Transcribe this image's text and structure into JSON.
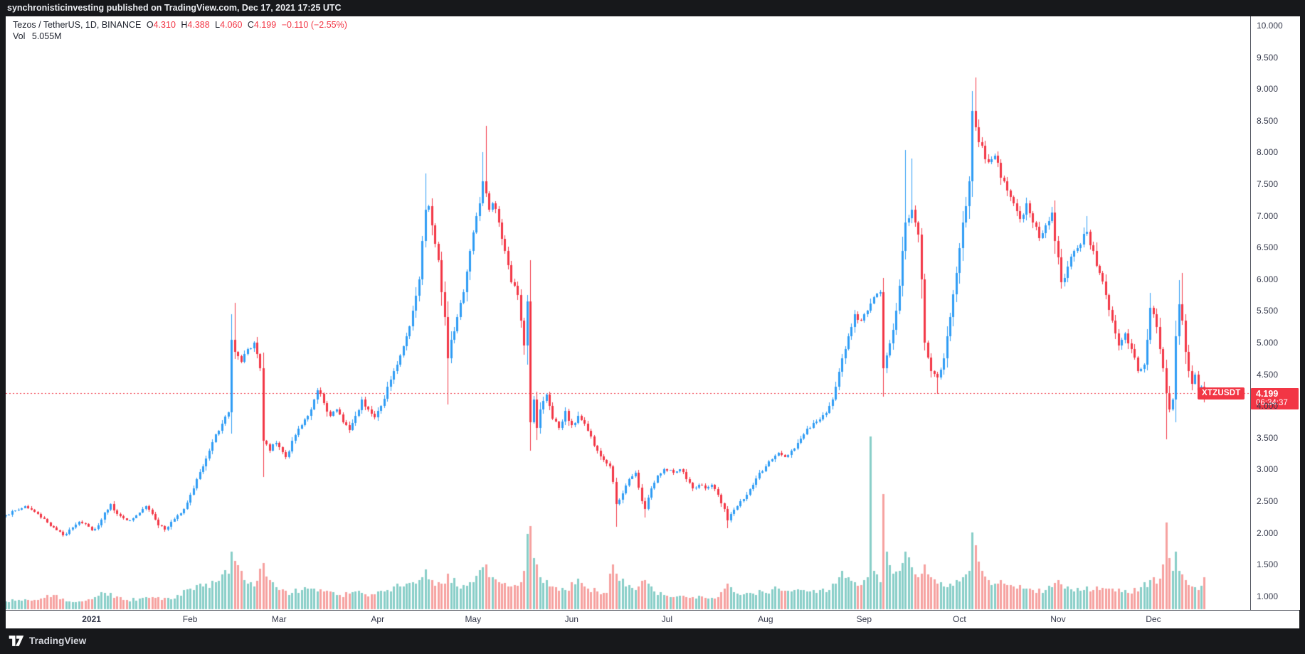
{
  "top_bar": {
    "text": "synchronisticinvesting published on TradingView.com, Dec 17, 2021 17:25 UTC"
  },
  "legend": {
    "title": "Tezos / TetherUS, 1D, BINANCE",
    "ohlc": [
      {
        "label": "O",
        "value": "4.310"
      },
      {
        "label": "H",
        "value": "4.388"
      },
      {
        "label": "L",
        "value": "4.060"
      },
      {
        "label": "C",
        "value": "4.199"
      }
    ],
    "change": "−0.110 (−2.55%)",
    "vol_label": "Vol",
    "vol_value": "5.055M"
  },
  "last_price": {
    "symbol": "XTZUSDT",
    "price": "4.199",
    "countdown": "06:34:37",
    "value": 4.199
  },
  "footer": {
    "brand": "TradingView"
  },
  "colors": {
    "up": "#2e9cf4",
    "down": "#f23645",
    "vol_up": "rgba(38,166,154,0.55)",
    "vol_down": "rgba(239,83,80,0.55)",
    "price_line": "#f23645",
    "bg_dark": "#17181b",
    "axis_text": "#34384a"
  },
  "price_axis": {
    "min": 1.0,
    "max": 10.0,
    "step": 0.5,
    "ticks": [
      {
        "label": "10.000",
        "value": 10.0
      },
      {
        "label": "9.500",
        "value": 9.5
      },
      {
        "label": "9.000",
        "value": 9.0
      },
      {
        "label": "8.500",
        "value": 8.5
      },
      {
        "label": "8.000",
        "value": 8.0
      },
      {
        "label": "7.500",
        "value": 7.5
      },
      {
        "label": "7.000",
        "value": 7.0
      },
      {
        "label": "6.500",
        "value": 6.5
      },
      {
        "label": "6.000",
        "value": 6.0
      },
      {
        "label": "5.500",
        "value": 5.5
      },
      {
        "label": "5.000",
        "value": 5.0
      },
      {
        "label": "4.500",
        "value": 4.5
      },
      {
        "label": "4.000",
        "value": 4.0
      },
      {
        "label": "3.500",
        "value": 3.5
      },
      {
        "label": "3.000",
        "value": 3.0
      },
      {
        "label": "2.500",
        "value": 2.5
      },
      {
        "label": "2.000",
        "value": 2.0
      },
      {
        "label": "1.500",
        "value": 1.5
      },
      {
        "label": "1.000",
        "value": 1.0
      }
    ]
  },
  "time_axis": {
    "labels": [
      {
        "text": "2021",
        "day": 27,
        "year": true
      },
      {
        "text": "Feb",
        "day": 58
      },
      {
        "text": "Mar",
        "day": 86
      },
      {
        "text": "Apr",
        "day": 117
      },
      {
        "text": "May",
        "day": 147
      },
      {
        "text": "Jun",
        "day": 178
      },
      {
        "text": "Jul",
        "day": 208
      },
      {
        "text": "Aug",
        "day": 239
      },
      {
        "text": "Sep",
        "day": 270
      },
      {
        "text": "Oct",
        "day": 300
      },
      {
        "text": "Nov",
        "day": 331
      },
      {
        "text": "Dec",
        "day": 361
      }
    ]
  },
  "chart_data": {
    "type": "candlestick",
    "symbol": "XTZUSDT",
    "exchange": "BINANCE",
    "interval": "1D",
    "date_range": "Dec 2020 - Dec 17 2021",
    "ylim": [
      1.0,
      10.0
    ],
    "grid": false,
    "days_total": 378,
    "price_line": 4.199,
    "last_candle": {
      "open": 4.31,
      "high": 4.388,
      "low": 4.06,
      "close": 4.199,
      "volume_m": 5.055
    },
    "close_anchors": [
      [
        0,
        2.28
      ],
      [
        3,
        2.35
      ],
      [
        6,
        2.42
      ],
      [
        9,
        2.33
      ],
      [
        12,
        2.22
      ],
      [
        15,
        2.08
      ],
      [
        18,
        1.96
      ],
      [
        20,
        2.05
      ],
      [
        23,
        2.18
      ],
      [
        26,
        2.1
      ],
      [
        27,
        2.04
      ],
      [
        29,
        2.12
      ],
      [
        31,
        2.32
      ],
      [
        33,
        2.45
      ],
      [
        35,
        2.3
      ],
      [
        38,
        2.2
      ],
      [
        41,
        2.28
      ],
      [
        44,
        2.42
      ],
      [
        46,
        2.3
      ],
      [
        48,
        2.12
      ],
      [
        50,
        2.05
      ],
      [
        52,
        2.18
      ],
      [
        54,
        2.28
      ],
      [
        56,
        2.38
      ],
      [
        58,
        2.6
      ],
      [
        60,
        2.85
      ],
      [
        62,
        3.05
      ],
      [
        64,
        3.3
      ],
      [
        66,
        3.55
      ],
      [
        68,
        3.72
      ],
      [
        70,
        3.9
      ],
      [
        71,
        5.05
      ],
      [
        72,
        4.85
      ],
      [
        74,
        4.7
      ],
      [
        76,
        4.9
      ],
      [
        78,
        5.0
      ],
      [
        80,
        4.6
      ],
      [
        81,
        3.45
      ],
      [
        83,
        3.3
      ],
      [
        85,
        3.42
      ],
      [
        86,
        3.35
      ],
      [
        88,
        3.2
      ],
      [
        90,
        3.45
      ],
      [
        93,
        3.7
      ],
      [
        96,
        3.95
      ],
      [
        98,
        4.25
      ],
      [
        100,
        4.05
      ],
      [
        102,
        3.85
      ],
      [
        104,
        3.95
      ],
      [
        106,
        3.75
      ],
      [
        108,
        3.62
      ],
      [
        110,
        3.85
      ],
      [
        112,
        4.1
      ],
      [
        114,
        3.95
      ],
      [
        116,
        3.82
      ],
      [
        118,
        4.0
      ],
      [
        120,
        4.3
      ],
      [
        122,
        4.55
      ],
      [
        124,
        4.8
      ],
      [
        126,
        5.1
      ],
      [
        128,
        5.5
      ],
      [
        130,
        6.0
      ],
      [
        132,
        7.1
      ],
      [
        133,
        7.15
      ],
      [
        134,
        6.85
      ],
      [
        136,
        6.3
      ],
      [
        137,
        5.8
      ],
      [
        138,
        5.4
      ],
      [
        139,
        4.75
      ],
      [
        140,
        5.05
      ],
      [
        142,
        5.4
      ],
      [
        144,
        5.8
      ],
      [
        146,
        6.45
      ],
      [
        148,
        7.0
      ],
      [
        150,
        7.55
      ],
      [
        151,
        7.35
      ],
      [
        152,
        7.1
      ],
      [
        153,
        7.2
      ],
      [
        155,
        6.9
      ],
      [
        157,
        6.45
      ],
      [
        159,
        5.95
      ],
      [
        161,
        5.75
      ],
      [
        162,
        5.35
      ],
      [
        163,
        4.95
      ],
      [
        164,
        5.65
      ],
      [
        165,
        3.75
      ],
      [
        166,
        4.1
      ],
      [
        167,
        3.65
      ],
      [
        168,
        3.95
      ],
      [
        170,
        4.18
      ],
      [
        172,
        3.8
      ],
      [
        174,
        3.65
      ],
      [
        176,
        3.92
      ],
      [
        178,
        3.7
      ],
      [
        180,
        3.85
      ],
      [
        182,
        3.72
      ],
      [
        184,
        3.52
      ],
      [
        186,
        3.3
      ],
      [
        188,
        3.15
      ],
      [
        190,
        3.05
      ],
      [
        191,
        2.8
      ],
      [
        192,
        2.45
      ],
      [
        194,
        2.62
      ],
      [
        196,
        2.85
      ],
      [
        198,
        2.95
      ],
      [
        200,
        2.5
      ],
      [
        201,
        2.38
      ],
      [
        203,
        2.7
      ],
      [
        205,
        2.9
      ],
      [
        207,
        3.0
      ],
      [
        210,
        2.95
      ],
      [
        212,
        3.0
      ],
      [
        214,
        2.85
      ],
      [
        216,
        2.7
      ],
      [
        218,
        2.76
      ],
      [
        220,
        2.7
      ],
      [
        222,
        2.76
      ],
      [
        224,
        2.6
      ],
      [
        226,
        2.38
      ],
      [
        227,
        2.2
      ],
      [
        229,
        2.36
      ],
      [
        231,
        2.5
      ],
      [
        233,
        2.6
      ],
      [
        235,
        2.76
      ],
      [
        237,
        2.95
      ],
      [
        239,
        3.05
      ],
      [
        241,
        3.16
      ],
      [
        243,
        3.26
      ],
      [
        245,
        3.2
      ],
      [
        247,
        3.3
      ],
      [
        249,
        3.42
      ],
      [
        251,
        3.55
      ],
      [
        253,
        3.66
      ],
      [
        255,
        3.76
      ],
      [
        257,
        3.86
      ],
      [
        259,
        4.0
      ],
      [
        261,
        4.3
      ],
      [
        263,
        4.75
      ],
      [
        265,
        5.1
      ],
      [
        267,
        5.45
      ],
      [
        269,
        5.35
      ],
      [
        271,
        5.5
      ],
      [
        272,
        5.62
      ],
      [
        273,
        5.72
      ],
      [
        275,
        5.8
      ],
      [
        276,
        4.6
      ],
      [
        277,
        4.8
      ],
      [
        279,
        5.2
      ],
      [
        281,
        5.9
      ],
      [
        283,
        6.9
      ],
      [
        285,
        7.1
      ],
      [
        287,
        6.7
      ],
      [
        288,
        6.0
      ],
      [
        289,
        5.0
      ],
      [
        291,
        4.55
      ],
      [
        293,
        4.45
      ],
      [
        295,
        4.75
      ],
      [
        297,
        5.4
      ],
      [
        299,
        6.1
      ],
      [
        301,
        6.9
      ],
      [
        303,
        7.55
      ],
      [
        304,
        8.65
      ],
      [
        305,
        8.4
      ],
      [
        307,
        8.1
      ],
      [
        309,
        7.85
      ],
      [
        311,
        7.95
      ],
      [
        313,
        7.6
      ],
      [
        315,
        7.4
      ],
      [
        317,
        7.2
      ],
      [
        319,
        6.95
      ],
      [
        321,
        7.2
      ],
      [
        323,
        6.9
      ],
      [
        325,
        6.65
      ],
      [
        327,
        6.85
      ],
      [
        329,
        7.05
      ],
      [
        330,
        6.6
      ],
      [
        332,
        5.95
      ],
      [
        334,
        6.2
      ],
      [
        336,
        6.45
      ],
      [
        338,
        6.55
      ],
      [
        340,
        6.75
      ],
      [
        342,
        6.45
      ],
      [
        344,
        6.1
      ],
      [
        346,
        5.75
      ],
      [
        348,
        5.35
      ],
      [
        350,
        4.95
      ],
      [
        352,
        5.15
      ],
      [
        354,
        4.9
      ],
      [
        356,
        4.55
      ],
      [
        358,
        4.65
      ],
      [
        360,
        5.55
      ],
      [
        361,
        5.45
      ],
      [
        362,
        5.25
      ],
      [
        363,
        4.9
      ],
      [
        365,
        4.2
      ],
      [
        366,
        3.95
      ],
      [
        367,
        4.1
      ],
      [
        368,
        5.1
      ],
      [
        369,
        5.6
      ],
      [
        370,
        5.35
      ],
      [
        371,
        4.85
      ],
      [
        372,
        4.55
      ],
      [
        373,
        4.35
      ],
      [
        374,
        4.5
      ],
      [
        375,
        4.25
      ],
      [
        376,
        4.31
      ],
      [
        377,
        4.199
      ]
    ],
    "wick_overrides": {
      "71": {
        "h": 5.45
      },
      "72": {
        "h": 5.63
      },
      "81": {
        "l": 2.88
      },
      "132": {
        "h": 7.67
      },
      "139": {
        "l": 4.02
      },
      "150": {
        "h": 8.0
      },
      "151": {
        "h": 8.42
      },
      "165": {
        "l": 3.3
      },
      "192": {
        "l": 2.1
      },
      "201": {
        "l": 2.24
      },
      "227": {
        "l": 2.07
      },
      "276": {
        "l": 4.15
      },
      "283": {
        "h": 8.04
      },
      "285": {
        "h": 7.9
      },
      "293": {
        "l": 4.19
      },
      "304": {
        "h": 8.97
      },
      "305": {
        "h": 9.18
      },
      "340": {
        "h": 7.0
      },
      "360": {
        "h": 5.78
      },
      "365": {
        "l": 3.47
      },
      "369": {
        "h": 5.99
      },
      "370": {
        "h": 6.1
      },
      "377": {
        "o": 4.31,
        "h": 4.388,
        "l": 4.06,
        "c": 4.199
      }
    },
    "volume_anchors_millions": [
      [
        0,
        1.2
      ],
      [
        6,
        1.5
      ],
      [
        10,
        1.4
      ],
      [
        15,
        2.2
      ],
      [
        20,
        1.2
      ],
      [
        27,
        1.6
      ],
      [
        31,
        2.6
      ],
      [
        38,
        1.4
      ],
      [
        45,
        1.8
      ],
      [
        52,
        1.5
      ],
      [
        58,
        3.2
      ],
      [
        62,
        3.6
      ],
      [
        66,
        4.2
      ],
      [
        70,
        5.5
      ],
      [
        71,
        9.0
      ],
      [
        72,
        7.5
      ],
      [
        75,
        4.5
      ],
      [
        78,
        3.5
      ],
      [
        81,
        7.2
      ],
      [
        83,
        4.5
      ],
      [
        86,
        3.0
      ],
      [
        90,
        2.6
      ],
      [
        96,
        3.2
      ],
      [
        100,
        2.8
      ],
      [
        104,
        2.2
      ],
      [
        108,
        2.4
      ],
      [
        112,
        2.6
      ],
      [
        116,
        2.3
      ],
      [
        120,
        3.0
      ],
      [
        124,
        3.6
      ],
      [
        128,
        4.2
      ],
      [
        132,
        6.2
      ],
      [
        134,
        4.5
      ],
      [
        137,
        4.0
      ],
      [
        139,
        5.5
      ],
      [
        142,
        3.6
      ],
      [
        146,
        4.2
      ],
      [
        150,
        6.5
      ],
      [
        151,
        7.0
      ],
      [
        153,
        5.0
      ],
      [
        156,
        4.0
      ],
      [
        159,
        3.6
      ],
      [
        162,
        4.2
      ],
      [
        165,
        13.0
      ],
      [
        166,
        8.0
      ],
      [
        168,
        5.0
      ],
      [
        172,
        3.5
      ],
      [
        176,
        3.0
      ],
      [
        180,
        4.8
      ],
      [
        183,
        3.2
      ],
      [
        186,
        2.8
      ],
      [
        189,
        2.5
      ],
      [
        191,
        7.0
      ],
      [
        192,
        5.5
      ],
      [
        195,
        3.5
      ],
      [
        198,
        3.0
      ],
      [
        201,
        4.5
      ],
      [
        204,
        2.8
      ],
      [
        207,
        2.2
      ],
      [
        211,
        2.0
      ],
      [
        215,
        1.8
      ],
      [
        219,
        2.0
      ],
      [
        223,
        1.7
      ],
      [
        227,
        4.0
      ],
      [
        231,
        2.2
      ],
      [
        235,
        2.4
      ],
      [
        237,
        3.0
      ],
      [
        239,
        2.6
      ],
      [
        243,
        3.2
      ],
      [
        247,
        2.8
      ],
      [
        251,
        3.0
      ],
      [
        255,
        2.6
      ],
      [
        259,
        3.0
      ],
      [
        261,
        4.0
      ],
      [
        263,
        6.0
      ],
      [
        265,
        5.0
      ],
      [
        267,
        4.2
      ],
      [
        269,
        3.8
      ],
      [
        271,
        5.0
      ],
      [
        272,
        27.0
      ],
      [
        273,
        6.0
      ],
      [
        275,
        4.2
      ],
      [
        276,
        18.0
      ],
      [
        277,
        9.0
      ],
      [
        279,
        5.5
      ],
      [
        281,
        6.0
      ],
      [
        283,
        9.0
      ],
      [
        285,
        6.5
      ],
      [
        287,
        5.0
      ],
      [
        289,
        7.0
      ],
      [
        291,
        5.0
      ],
      [
        293,
        4.0
      ],
      [
        295,
        3.5
      ],
      [
        297,
        4.0
      ],
      [
        299,
        4.5
      ],
      [
        301,
        5.0
      ],
      [
        303,
        6.0
      ],
      [
        304,
        12.0
      ],
      [
        305,
        10.0
      ],
      [
        307,
        6.0
      ],
      [
        309,
        4.5
      ],
      [
        311,
        4.0
      ],
      [
        313,
        4.5
      ],
      [
        315,
        3.8
      ],
      [
        317,
        3.5
      ],
      [
        319,
        3.8
      ],
      [
        321,
        3.2
      ],
      [
        323,
        3.0
      ],
      [
        325,
        3.2
      ],
      [
        327,
        3.0
      ],
      [
        329,
        3.4
      ],
      [
        331,
        4.5
      ],
      [
        333,
        3.2
      ],
      [
        336,
        2.8
      ],
      [
        340,
        3.5
      ],
      [
        344,
        3.0
      ],
      [
        348,
        3.2
      ],
      [
        352,
        3.0
      ],
      [
        356,
        2.8
      ],
      [
        360,
        4.5
      ],
      [
        362,
        4.0
      ],
      [
        364,
        7.0
      ],
      [
        365,
        13.5
      ],
      [
        366,
        8.0
      ],
      [
        367,
        6.0
      ],
      [
        368,
        9.0
      ],
      [
        369,
        6.0
      ],
      [
        371,
        4.5
      ],
      [
        373,
        3.5
      ],
      [
        375,
        3.0
      ],
      [
        377,
        5.055
      ]
    ]
  }
}
